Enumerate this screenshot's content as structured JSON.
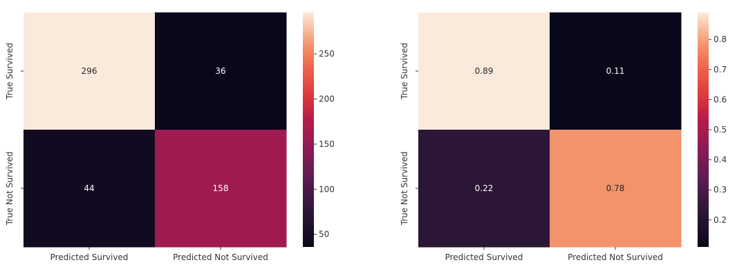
{
  "chart_data": [
    {
      "type": "heatmap",
      "title": "",
      "xlabel": "",
      "ylabel": "",
      "x_categories": [
        "Predicted Survived",
        "Predicted Not Survived"
      ],
      "y_categories": [
        "True Survived",
        "True Not Survived"
      ],
      "values": [
        [
          296,
          36
        ],
        [
          44,
          158
        ]
      ],
      "value_labels": [
        [
          "296",
          "36"
        ],
        [
          "44",
          "158"
        ]
      ],
      "colorbar": {
        "range": [
          36,
          296
        ],
        "ticks": [
          50,
          100,
          150,
          200,
          250
        ],
        "tick_labels": [
          "50",
          "100",
          "150",
          "200",
          "250"
        ]
      },
      "colormap": "rocket"
    },
    {
      "type": "heatmap",
      "title": "",
      "xlabel": "",
      "ylabel": "",
      "x_categories": [
        "Predicted Survived",
        "Predicted Not Survived"
      ],
      "y_categories": [
        "True Survived",
        "True Not Survived"
      ],
      "values": [
        [
          0.89,
          0.11
        ],
        [
          0.22,
          0.78
        ]
      ],
      "value_labels": [
        [
          "0.89",
          "0.11"
        ],
        [
          "0.22",
          "0.78"
        ]
      ],
      "colorbar": {
        "range": [
          0.11,
          0.89
        ],
        "ticks": [
          0.2,
          0.3,
          0.4,
          0.5,
          0.6,
          0.7,
          0.8
        ],
        "tick_labels": [
          "0.2",
          "0.3",
          "0.4",
          "0.5",
          "0.6",
          "0.7",
          "0.8"
        ]
      },
      "colormap": "rocket"
    }
  ]
}
